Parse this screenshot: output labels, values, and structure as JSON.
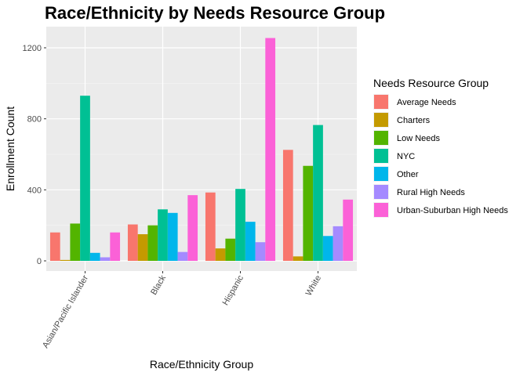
{
  "chart_data": {
    "type": "bar",
    "title": "Race/Ethnicity by Needs Resource Group",
    "xlabel": "Race/Ethnicity Group",
    "ylabel": "Enrollment Count",
    "ylim": [
      0,
      1320
    ],
    "yticks": [
      0,
      400,
      800,
      1200
    ],
    "ytick_labels": [
      "0",
      "400",
      "800",
      "1200"
    ],
    "grid": true,
    "legend_position": "right",
    "legend_title": "Needs Resource Group",
    "categories": [
      "Asian/Pacific Islander",
      "Black",
      "Hispanic",
      "White"
    ],
    "series": [
      {
        "name": "Average Needs",
        "color": "#F8766D",
        "values": [
          160,
          205,
          385,
          625
        ]
      },
      {
        "name": "Charters",
        "color": "#C49A00",
        "values": [
          5,
          150,
          70,
          25
        ]
      },
      {
        "name": "Low Needs",
        "color": "#53B400",
        "values": [
          210,
          200,
          125,
          535
        ]
      },
      {
        "name": "NYC",
        "color": "#00C094",
        "values": [
          930,
          290,
          405,
          765
        ]
      },
      {
        "name": "Other",
        "color": "#00B6EB",
        "values": [
          45,
          270,
          220,
          140
        ]
      },
      {
        "name": "Rural High Needs",
        "color": "#A58AFF",
        "values": [
          20,
          50,
          105,
          195
        ]
      },
      {
        "name": "Urban-Suburban High Needs",
        "color": "#FB61D7",
        "values": [
          160,
          370,
          1255,
          345
        ]
      }
    ]
  }
}
